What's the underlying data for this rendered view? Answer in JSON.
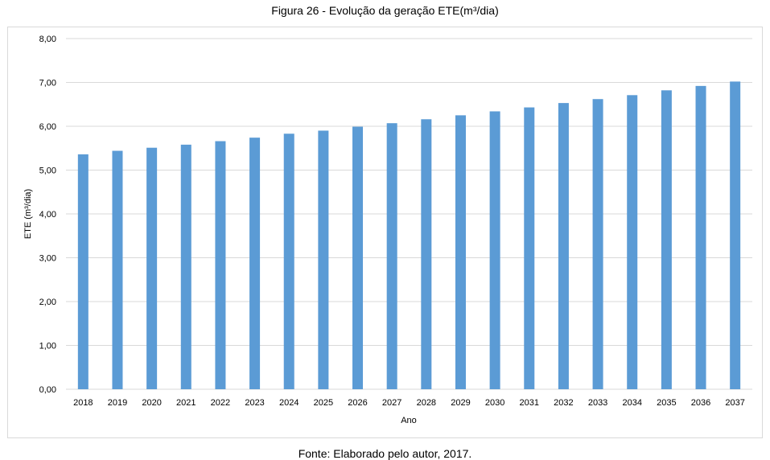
{
  "figure": {
    "title": "Figura 26 - Evolução da geração ETE(m³/dia)",
    "caption": "Fonte: Elaborado pelo autor, 2017."
  },
  "chart_data": {
    "type": "bar",
    "title": "",
    "xlabel": "Ano",
    "ylabel": "ETE (m³/dia)",
    "ylim": [
      0,
      8
    ],
    "y_ticks": [
      "0,00",
      "1,00",
      "2,00",
      "3,00",
      "4,00",
      "5,00",
      "6,00",
      "7,00",
      "8,00"
    ],
    "grid": true,
    "bar_color": "#5b9bd5",
    "grid_color": "#d9d9d9",
    "categories": [
      "2018",
      "2019",
      "2020",
      "2021",
      "2022",
      "2023",
      "2024",
      "2025",
      "2026",
      "2027",
      "2028",
      "2029",
      "2030",
      "2031",
      "2032",
      "2033",
      "2034",
      "2035",
      "2036",
      "2037"
    ],
    "values": [
      5.36,
      5.44,
      5.51,
      5.58,
      5.66,
      5.74,
      5.83,
      5.9,
      5.99,
      6.07,
      6.16,
      6.25,
      6.34,
      6.43,
      6.53,
      6.62,
      6.71,
      6.82,
      6.92,
      7.02
    ]
  }
}
